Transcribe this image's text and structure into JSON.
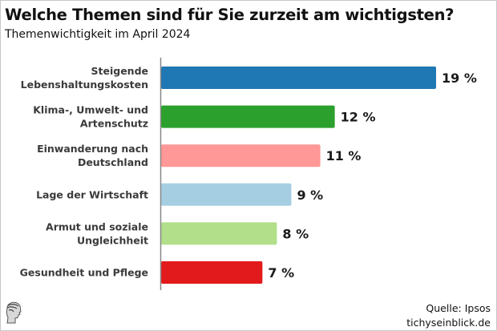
{
  "header": {
    "title": "Welche Themen sind für Sie zurzeit am wichtigsten?",
    "subtitle": "Themenwichtigkeit im April 2024"
  },
  "footer": {
    "source": "Quelle: Ipsos",
    "site": "tichyseinblick.de",
    "logo_icon": "classical-head-logo-icon"
  },
  "chart_data": {
    "type": "bar",
    "orientation": "horizontal",
    "title": "Welche Themen sind für Sie zurzeit am wichtigsten?",
    "subtitle": "Themenwichtigkeit im April 2024",
    "xlabel": "",
    "ylabel": "",
    "unit": "%",
    "grid": false,
    "legend": "none",
    "xlim": [
      0,
      19
    ],
    "categories": [
      [
        "Steigende",
        "Lebenshaltungskosten"
      ],
      [
        "Klima-, Umwelt- und",
        "Artenschutz"
      ],
      [
        "Einwanderung nach",
        "Deutschland"
      ],
      [
        "Lage der Wirtschaft"
      ],
      [
        "Armut und soziale",
        "Ungleichheit"
      ],
      [
        "Gesundheit und Pflege"
      ]
    ],
    "values": [
      19,
      12,
      11,
      9,
      8,
      7
    ],
    "value_labels": [
      "19 %",
      "12 %",
      "11 %",
      "9 %",
      "8 %",
      "7 %"
    ],
    "colors": [
      "#1f77b4",
      "#2ca02c",
      "#ff9896",
      "#a6cee3",
      "#b2df8a",
      "#e31a1c"
    ],
    "source": "Quelle: Ipsos"
  }
}
